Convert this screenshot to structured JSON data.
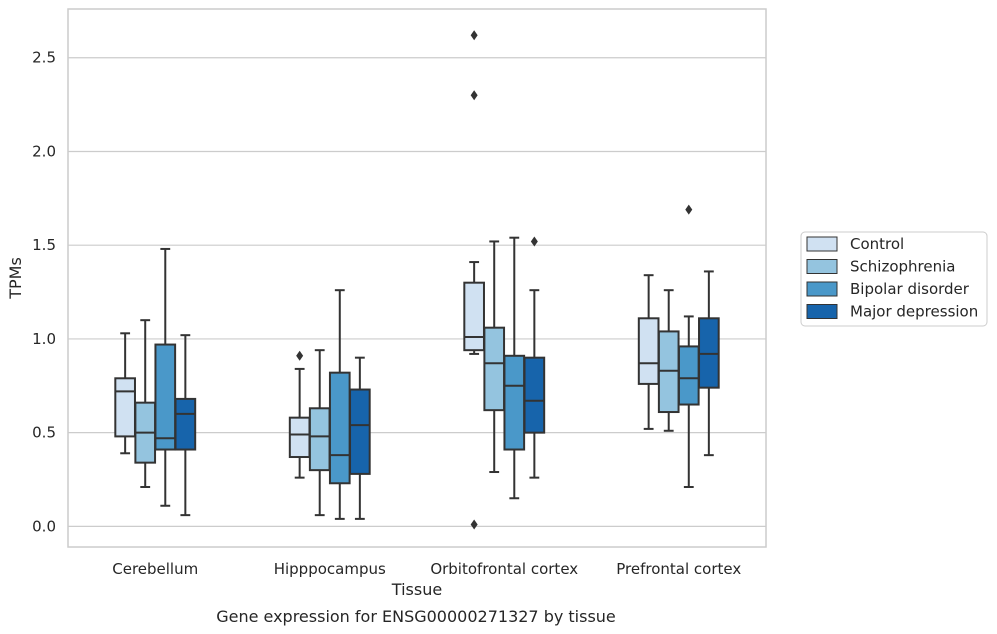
{
  "caption": "Gene expression for ENSG00000271327 by tissue",
  "chart_data": {
    "type": "box",
    "xlabel": "Tissue",
    "ylabel": "TPMs",
    "ylim": [
      -0.11,
      2.76
    ],
    "yticks": [
      "0.0",
      "0.5",
      "1.0",
      "1.5",
      "2.0",
      "2.5"
    ],
    "grid": "horizontal",
    "legend_position": "right",
    "categories": [
      "Cerebellum",
      "Hipppocampus",
      "Orbitofrontal cortex",
      "Prefrontal cortex"
    ],
    "series": [
      {
        "name": "Control",
        "color": "#d0e1f2",
        "boxes": [
          {
            "whislo": 0.39,
            "q1": 0.48,
            "med": 0.72,
            "q3": 0.79,
            "whishi": 1.03,
            "fliers": []
          },
          {
            "whislo": 0.26,
            "q1": 0.37,
            "med": 0.49,
            "q3": 0.58,
            "whishi": 0.84,
            "fliers": [
              0.91
            ]
          },
          {
            "whislo": 0.92,
            "q1": 0.94,
            "med": 1.01,
            "q3": 1.3,
            "whishi": 1.41,
            "fliers": [
              2.3,
              2.62,
              0.01
            ]
          },
          {
            "whislo": 0.52,
            "q1": 0.76,
            "med": 0.87,
            "q3": 1.11,
            "whishi": 1.34,
            "fliers": []
          }
        ]
      },
      {
        "name": "Schizophrenia",
        "color": "#94c4df",
        "boxes": [
          {
            "whislo": 0.21,
            "q1": 0.34,
            "med": 0.5,
            "q3": 0.66,
            "whishi": 1.1,
            "fliers": []
          },
          {
            "whislo": 0.06,
            "q1": 0.3,
            "med": 0.48,
            "q3": 0.63,
            "whishi": 0.94,
            "fliers": []
          },
          {
            "whislo": 0.29,
            "q1": 0.62,
            "med": 0.87,
            "q3": 1.06,
            "whishi": 1.52,
            "fliers": []
          },
          {
            "whislo": 0.51,
            "q1": 0.61,
            "med": 0.83,
            "q3": 1.04,
            "whishi": 1.26,
            "fliers": []
          }
        ]
      },
      {
        "name": "Bipolar disorder",
        "color": "#4a98c9",
        "boxes": [
          {
            "whislo": 0.11,
            "q1": 0.41,
            "med": 0.47,
            "q3": 0.97,
            "whishi": 1.48,
            "fliers": []
          },
          {
            "whislo": 0.04,
            "q1": 0.23,
            "med": 0.38,
            "q3": 0.82,
            "whishi": 1.26,
            "fliers": []
          },
          {
            "whislo": 0.15,
            "q1": 0.41,
            "med": 0.75,
            "q3": 0.91,
            "whishi": 1.54,
            "fliers": []
          },
          {
            "whislo": 0.21,
            "q1": 0.65,
            "med": 0.79,
            "q3": 0.96,
            "whishi": 1.12,
            "fliers": [
              1.69
            ]
          }
        ]
      },
      {
        "name": "Major depression",
        "color": "#1764ab",
        "boxes": [
          {
            "whislo": 0.06,
            "q1": 0.41,
            "med": 0.6,
            "q3": 0.68,
            "whishi": 1.02,
            "fliers": []
          },
          {
            "whislo": 0.04,
            "q1": 0.28,
            "med": 0.54,
            "q3": 0.73,
            "whishi": 0.9,
            "fliers": []
          },
          {
            "whislo": 0.26,
            "q1": 0.5,
            "med": 0.67,
            "q3": 0.9,
            "whishi": 1.26,
            "fliers": [
              1.52
            ]
          },
          {
            "whislo": 0.38,
            "q1": 0.74,
            "med": 0.92,
            "q3": 1.11,
            "whishi": 1.36,
            "fliers": []
          }
        ]
      }
    ]
  }
}
